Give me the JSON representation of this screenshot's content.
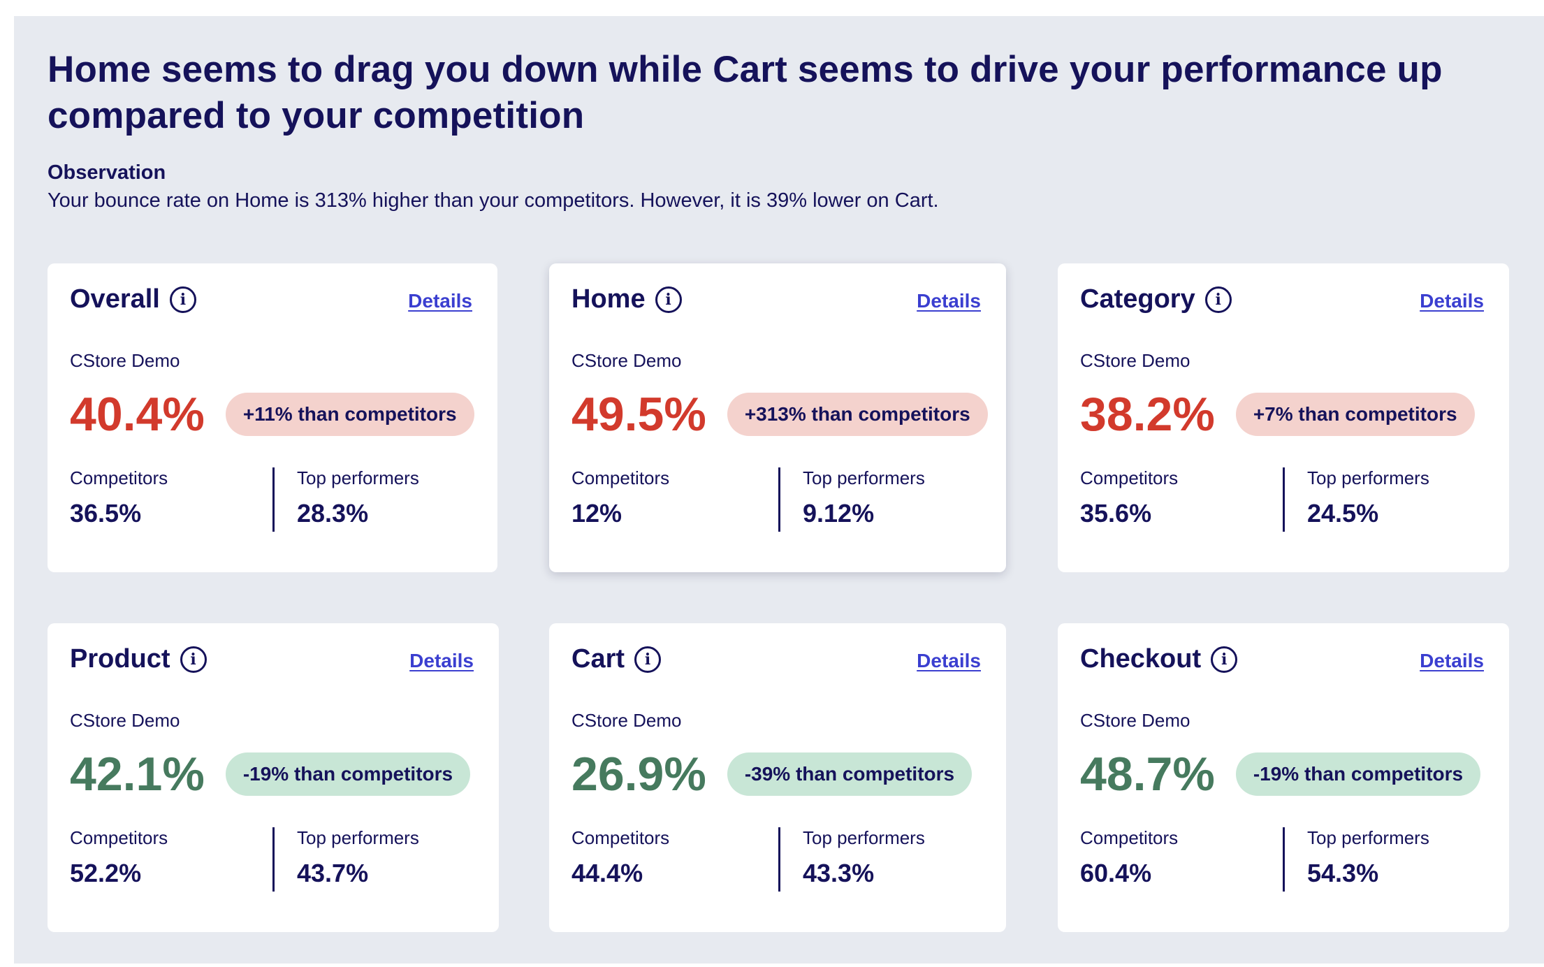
{
  "headline": "Home seems to drag you down while Cart seems to drive your performance up compared to your competition",
  "observation": {
    "title": "Observation",
    "text": "Your bounce rate on Home is 313% higher than your competitors. However, it is 39% lower on Cart."
  },
  "colors": {
    "bad": "#d23a2c",
    "good": "#467a5e",
    "bad_pill": "#f4d2cd",
    "good_pill": "#c8e6d6",
    "link": "#3b3fd0"
  },
  "cards": [
    {
      "title": "Overall",
      "details": "Details",
      "store": "CStore Demo",
      "value": "40.4%",
      "delta": "+11% than competitors",
      "status": "bad",
      "competitors_label": "Competitors",
      "competitors": "36.5%",
      "top_label": "Top performers",
      "top": "28.3%"
    },
    {
      "title": "Home",
      "details": "Details",
      "store": "CStore Demo",
      "value": "49.5%",
      "delta": "+313% than competitors",
      "status": "bad",
      "competitors_label": "Competitors",
      "competitors": "12%",
      "top_label": "Top performers",
      "top": "9.12%"
    },
    {
      "title": "Category",
      "details": "Details",
      "store": "CStore Demo",
      "value": "38.2%",
      "delta": "+7% than competitors",
      "status": "bad",
      "competitors_label": "Competitors",
      "competitors": "35.6%",
      "top_label": "Top performers",
      "top": "24.5%"
    },
    {
      "title": "Product",
      "details": "Details",
      "store": "CStore Demo",
      "value": "42.1%",
      "delta": "-19% than competitors",
      "status": "good",
      "competitors_label": "Competitors",
      "competitors": "52.2%",
      "top_label": "Top performers",
      "top": "43.7%"
    },
    {
      "title": "Cart",
      "details": "Details",
      "store": "CStore Demo",
      "value": "26.9%",
      "delta": "-39% than competitors",
      "status": "good",
      "competitors_label": "Competitors",
      "competitors": "44.4%",
      "top_label": "Top performers",
      "top": "43.3%"
    },
    {
      "title": "Checkout",
      "details": "Details",
      "store": "CStore Demo",
      "value": "48.7%",
      "delta": "-19% than competitors",
      "status": "good",
      "competitors_label": "Competitors",
      "competitors": "60.4%",
      "top_label": "Top performers",
      "top": "54.3%"
    }
  ]
}
